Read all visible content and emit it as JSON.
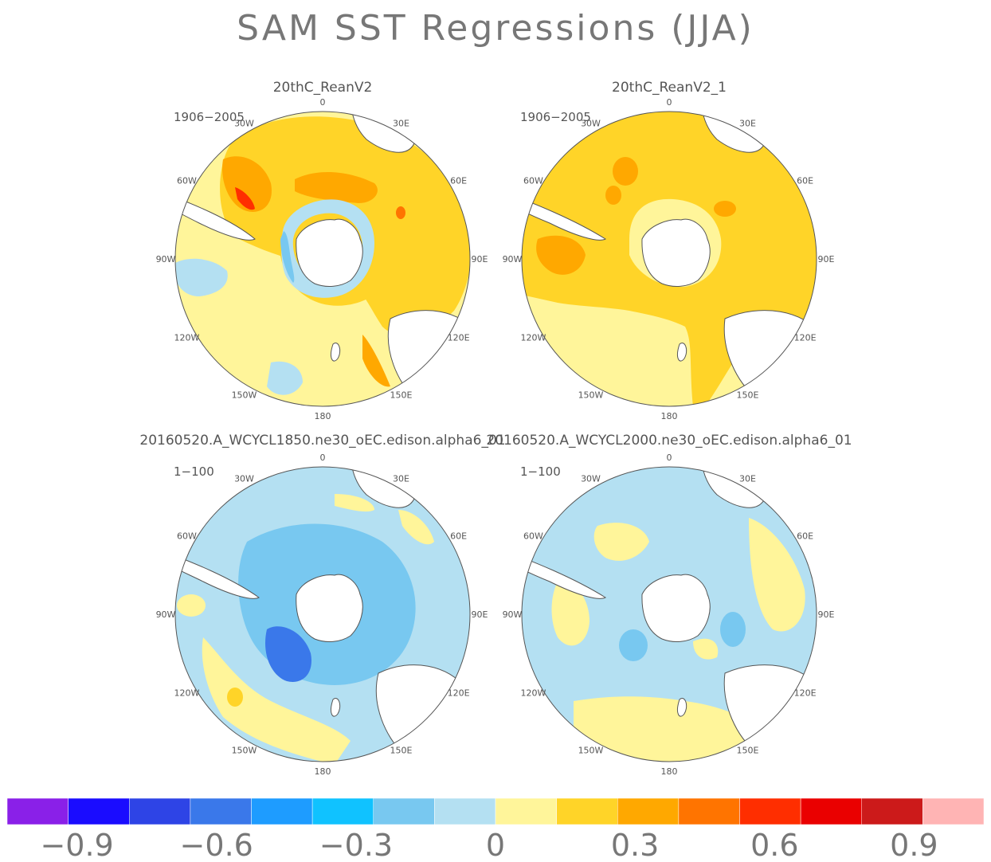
{
  "title": "SAM SST Regressions (JJA)",
  "lon_labels": [
    "0",
    "30E",
    "60E",
    "90E",
    "120E",
    "150E",
    "180",
    "150W",
    "120W",
    "90W",
    "60W",
    "30W"
  ],
  "panels": [
    {
      "id": "reanv2",
      "title": "20thC_ReanV2",
      "period": "1906−2005",
      "pattern": "warm-strong",
      "regions": [
        {
          "level": 0.15,
          "desc": "broad warm background"
        },
        {
          "level": 0.35,
          "desc": "warm belt around Antarctica"
        },
        {
          "level": 0.65,
          "desc": "hotspot south of South America"
        },
        {
          "level": -0.15,
          "desc": "cool ring adjacent to Antarctica"
        },
        {
          "level": -0.45,
          "desc": "cool patch near Antarctic Peninsula"
        }
      ]
    },
    {
      "id": "reanv2_1",
      "title": "20thC_ReanV2_1",
      "period": "1906−2005",
      "pattern": "warm-uniform",
      "regions": [
        {
          "level": 0.35,
          "desc": "widespread warm anomaly"
        },
        {
          "level": 0.45,
          "desc": "warm patches near South America"
        },
        {
          "level": 0.15,
          "desc": "mild anomaly in Pacific sector"
        }
      ]
    },
    {
      "id": "wcycl1850",
      "title": "20160520.A_WCYCL1850.ne30_oEC.edison.alpha6_01",
      "period": "1−100",
      "pattern": "cool-ring",
      "regions": [
        {
          "level": -0.15,
          "desc": "broad cool background"
        },
        {
          "level": -0.45,
          "desc": "cool ring around Antarctica"
        },
        {
          "level": -0.55,
          "desc": "strongest cooling in Pacific sector"
        },
        {
          "level": 0.15,
          "desc": "warm patches in mid-latitudes"
        }
      ]
    },
    {
      "id": "wcycl2000",
      "title": "20160520.A_WCYCL2000.ne30_oEC.edison.alpha6_01",
      "period": "1−100",
      "pattern": "cool-mixed",
      "regions": [
        {
          "level": -0.15,
          "desc": "broad cool background"
        },
        {
          "level": 0.15,
          "desc": "warm patches and streaks"
        },
        {
          "level": -0.45,
          "desc": "isolated cool patches"
        }
      ]
    }
  ],
  "colorbar": {
    "colors": [
      "#8a20e8",
      "#1a0cff",
      "#2e44e6",
      "#3a78ea",
      "#1e9cff",
      "#10c2ff",
      "#78c8f0",
      "#b4e0f2",
      "#fff59a",
      "#ffd428",
      "#ffa800",
      "#ff7400",
      "#ff2e00",
      "#ea0000",
      "#cc1a1a",
      "#ffb4b4"
    ],
    "labels": [
      "−0.9",
      "−0.6",
      "−0.3",
      "0",
      "0.3",
      "0.6",
      "0.9"
    ],
    "label_values": [
      -0.9,
      -0.6,
      -0.3,
      0,
      0.3,
      0.6,
      0.9
    ],
    "range": [
      -1.05,
      1.05
    ],
    "step": 0.15
  }
}
